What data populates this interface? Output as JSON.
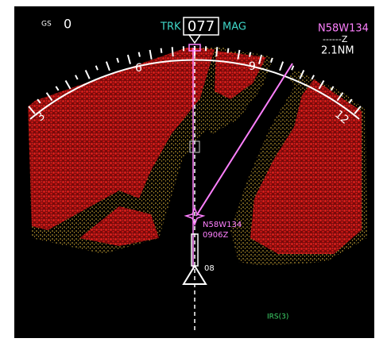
{
  "header": {
    "gs_label": "GS",
    "gs_value": "0",
    "trk_label": "TRK",
    "track": "077",
    "mag_label": "MAG"
  },
  "waypoint_box": {
    "name": "N58W134",
    "eta_line": "------Z",
    "distance": "2.1NM"
  },
  "compass": {
    "labels": [
      "3",
      "6",
      "9",
      "12"
    ]
  },
  "route": {
    "waypoint": "N58W134",
    "time": "0906Z"
  },
  "range_label": "08",
  "source": "IRS(3)"
}
